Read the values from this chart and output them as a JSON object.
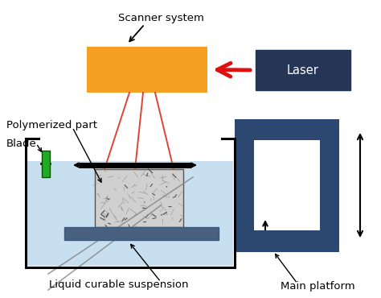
{
  "bg_color": "#ffffff",
  "labels": {
    "scanner_system": "Scanner system",
    "laser": "Laser",
    "polymerized_part": "Polymerized part",
    "blade": "Blade",
    "liquid": "Liquid curable suspension",
    "main_platform": "Main platform"
  },
  "colors": {
    "scanner_orange": "#f5a023",
    "laser_navy": "#253555",
    "laser_text": "#ffffff",
    "red_arrow": "#dd1111",
    "beam_red": "#dd4433",
    "frame_blue": "#2c4870",
    "liquid_blue": "#c8dff0",
    "blade_green": "#22aa22",
    "part_fill": "#cccccc",
    "platform_fill": "#4a6080",
    "tank_wall": "#000000"
  },
  "font_size": 9.5
}
